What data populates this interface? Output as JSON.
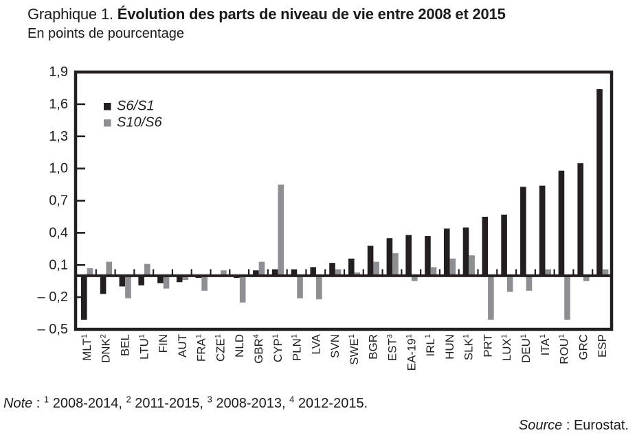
{
  "page": {
    "background": "#ffffff"
  },
  "header": {
    "title_prefix": "Graphique 1. ",
    "title_bold": "Évolution des parts de niveau de vie entre 2008 et 2015",
    "subtitle": "En points de pourcentage"
  },
  "chart_data": {
    "type": "bar",
    "title": "Évolution des parts de niveau de vie entre 2008 et 2015",
    "unit_label": "En points de pourcentage",
    "grid": false,
    "legend_position": "top-left-inside",
    "ylim": [
      -0.5,
      1.9
    ],
    "ytick_values": [
      1.9,
      1.6,
      1.3,
      1.0,
      0.7,
      0.4,
      0.1,
      -0.2,
      -0.5
    ],
    "ytick_labels": [
      "1,9",
      "1,6",
      "1,3",
      "1,0",
      "0,7",
      "0,4",
      "0,1",
      "– 0,2",
      "– 0,5"
    ],
    "categories": [
      {
        "code": "MLT",
        "sup": "1"
      },
      {
        "code": "DNK",
        "sup": "2"
      },
      {
        "code": "BEL",
        "sup": ""
      },
      {
        "code": "LTU",
        "sup": "1"
      },
      {
        "code": "FIN",
        "sup": ""
      },
      {
        "code": "AUT",
        "sup": ""
      },
      {
        "code": "FRA",
        "sup": "1"
      },
      {
        "code": "CZE",
        "sup": "1"
      },
      {
        "code": "NLD",
        "sup": ""
      },
      {
        "code": "GBR",
        "sup": "4"
      },
      {
        "code": "CYP",
        "sup": "1"
      },
      {
        "code": "PLN",
        "sup": "1"
      },
      {
        "code": "LVA",
        "sup": ""
      },
      {
        "code": "SVN",
        "sup": ""
      },
      {
        "code": "SWE",
        "sup": "1"
      },
      {
        "code": "BGR",
        "sup": ""
      },
      {
        "code": "EST",
        "sup": "3"
      },
      {
        "code": "EA-19",
        "sup": "1"
      },
      {
        "code": "IRL",
        "sup": "1"
      },
      {
        "code": "HUN",
        "sup": ""
      },
      {
        "code": "SLK",
        "sup": "1"
      },
      {
        "code": "PRT",
        "sup": ""
      },
      {
        "code": "LUX",
        "sup": "1"
      },
      {
        "code": "DEU",
        "sup": "1"
      },
      {
        "code": "ITA",
        "sup": "1"
      },
      {
        "code": "ROU",
        "sup": "1"
      },
      {
        "code": "GRC",
        "sup": ""
      },
      {
        "code": "ESP",
        "sup": ""
      }
    ],
    "series": [
      {
        "name": "S6/S1",
        "color": "#231f20",
        "values": [
          -0.41,
          -0.17,
          -0.1,
          -0.09,
          -0.07,
          -0.06,
          -0.02,
          0.0,
          -0.02,
          0.05,
          0.06,
          0.06,
          0.08,
          0.12,
          0.16,
          0.28,
          0.35,
          0.38,
          0.37,
          0.44,
          0.45,
          0.55,
          0.57,
          0.83,
          0.84,
          0.98,
          1.05,
          1.74
        ]
      },
      {
        "name": "S10/S6",
        "color": "#8d8f92",
        "values": [
          0.07,
          0.13,
          -0.21,
          0.11,
          -0.12,
          -0.04,
          -0.14,
          0.05,
          -0.25,
          0.13,
          0.85,
          -0.21,
          -0.22,
          0.06,
          0.03,
          0.13,
          0.21,
          -0.05,
          0.08,
          0.16,
          0.19,
          -0.41,
          -0.15,
          -0.14,
          0.06,
          -0.41,
          -0.05,
          0.06
        ]
      }
    ]
  },
  "note": {
    "label": "Note",
    "separator": " : ",
    "items": [
      {
        "sup": "1",
        "range": "2008-2014"
      },
      {
        "sup": "2",
        "range": "2011-2015"
      },
      {
        "sup": "3",
        "range": "2008-2013"
      },
      {
        "sup": "4",
        "range": "2012-2015"
      }
    ]
  },
  "source": {
    "label": "Source",
    "rest": " : Eurostat."
  }
}
